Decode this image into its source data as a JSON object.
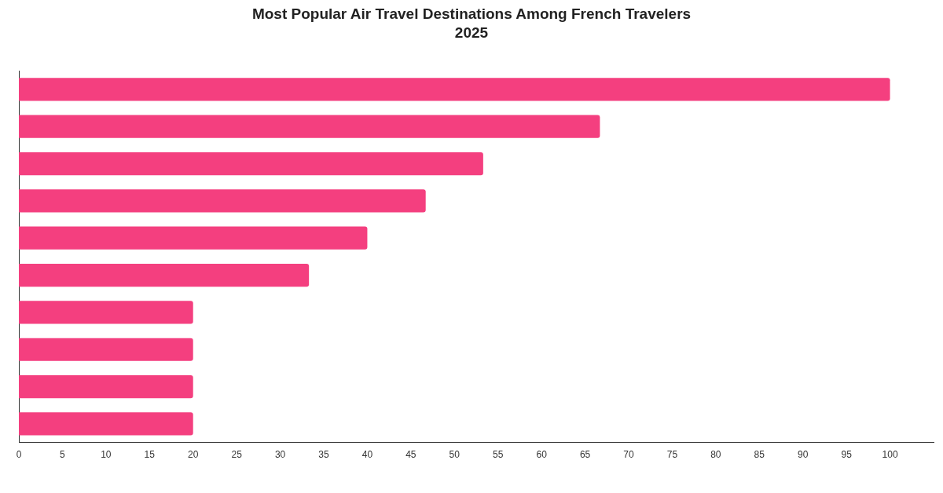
{
  "chart_data": {
    "type": "bar",
    "orientation": "horizontal",
    "title": "Most Popular Air Travel Destinations Among French Travelers 2025",
    "categories": [
      null,
      null,
      null,
      null,
      null,
      null,
      null,
      null,
      null,
      null
    ],
    "values": [
      100,
      66.7,
      53.3,
      46.7,
      40,
      33.3,
      20,
      20,
      20,
      20
    ],
    "color": "#f43f7f",
    "xlim": [
      0,
      105
    ],
    "xticks": [
      0,
      5,
      10,
      15,
      20,
      25,
      30,
      35,
      40,
      45,
      50,
      55,
      60,
      65,
      70,
      75,
      80,
      85,
      90,
      95,
      100
    ],
    "grid": false,
    "legend": false
  }
}
